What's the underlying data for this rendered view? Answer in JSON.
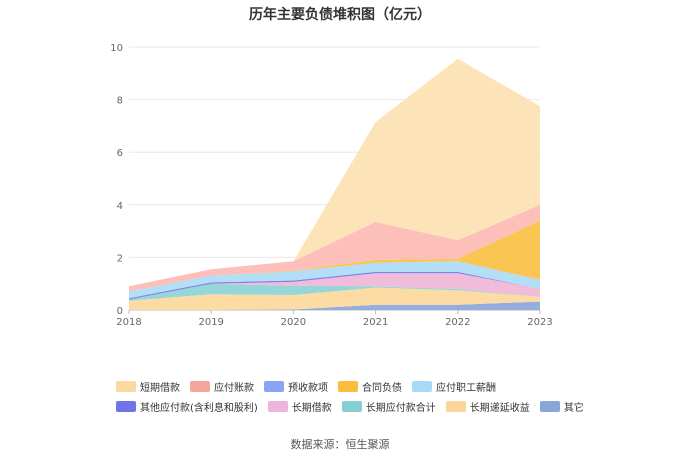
{
  "chart_data": {
    "type": "area",
    "title": "历年主要负债堆积图（亿元）",
    "x": [
      "2018",
      "2019",
      "2020",
      "2021",
      "2022",
      "2023"
    ],
    "ylim": [
      0,
      10
    ],
    "yticks": [
      "0",
      "2",
      "4",
      "6",
      "8",
      "10"
    ],
    "grid": true,
    "legend_position": "bottom",
    "series": [
      {
        "name": "其它",
        "color": "#8faadc",
        "values": [
          0.0,
          0.0,
          0.02,
          0.2,
          0.2,
          0.32
        ]
      },
      {
        "name": "长期递延收益",
        "color": "#fdd9a0",
        "values": [
          0.35,
          0.6,
          0.55,
          0.65,
          0.55,
          0.18
        ]
      },
      {
        "name": "长期应付款合计",
        "color": "#8fd4d6",
        "values": [
          0.05,
          0.4,
          0.35,
          0.05,
          0.05,
          0.0
        ]
      },
      {
        "name": "长期借款",
        "color": "#f0b8d8",
        "values": [
          0.0,
          0.0,
          0.15,
          0.5,
          0.6,
          0.3
        ]
      },
      {
        "name": "其他应付款(含利息和股利)",
        "color": "#7b7bea",
        "values": [
          0.05,
          0.05,
          0.05,
          0.05,
          0.05,
          0.0
        ]
      },
      {
        "name": "应付职工薪酬",
        "color": "#aedcf7",
        "values": [
          0.25,
          0.25,
          0.35,
          0.35,
          0.4,
          0.35
        ]
      },
      {
        "name": "合同负债",
        "color": "#fbc24a",
        "values": [
          0.0,
          0.0,
          0.03,
          0.1,
          0.1,
          2.25
        ]
      },
      {
        "name": "预收款项",
        "color": "#92a9f2",
        "values": [
          0.0,
          0.0,
          0.0,
          0.0,
          0.0,
          0.0
        ]
      },
      {
        "name": "应付账款",
        "color": "#fcbcb5",
        "values": [
          0.2,
          0.25,
          0.35,
          1.45,
          0.7,
          0.6
        ]
      },
      {
        "name": "短期借款",
        "color": "#fde1b4",
        "values": [
          0.0,
          0.0,
          0.0,
          3.8,
          6.9,
          3.75
        ]
      }
    ],
    "legend": [
      [
        {
          "name": "短期借款",
          "color": "#fcd9a2"
        },
        {
          "name": "应付账款",
          "color": "#f6a59b"
        },
        {
          "name": "预收款项",
          "color": "#8aa3f2"
        },
        {
          "name": "合同负债",
          "color": "#fbbd3c"
        },
        {
          "name": "应付职工薪酬",
          "color": "#a8daf7"
        }
      ],
      [
        {
          "name": "其他应付款(含利息和股利)",
          "color": "#7373e8"
        },
        {
          "name": "长期借款",
          "color": "#ecb6dc"
        },
        {
          "name": "长期应付款合计",
          "color": "#86cfd2"
        },
        {
          "name": "长期递延收益",
          "color": "#fcd59a"
        },
        {
          "name": "其它",
          "color": "#8aa6d6"
        }
      ]
    ]
  },
  "source": "数据来源：恒生聚源"
}
